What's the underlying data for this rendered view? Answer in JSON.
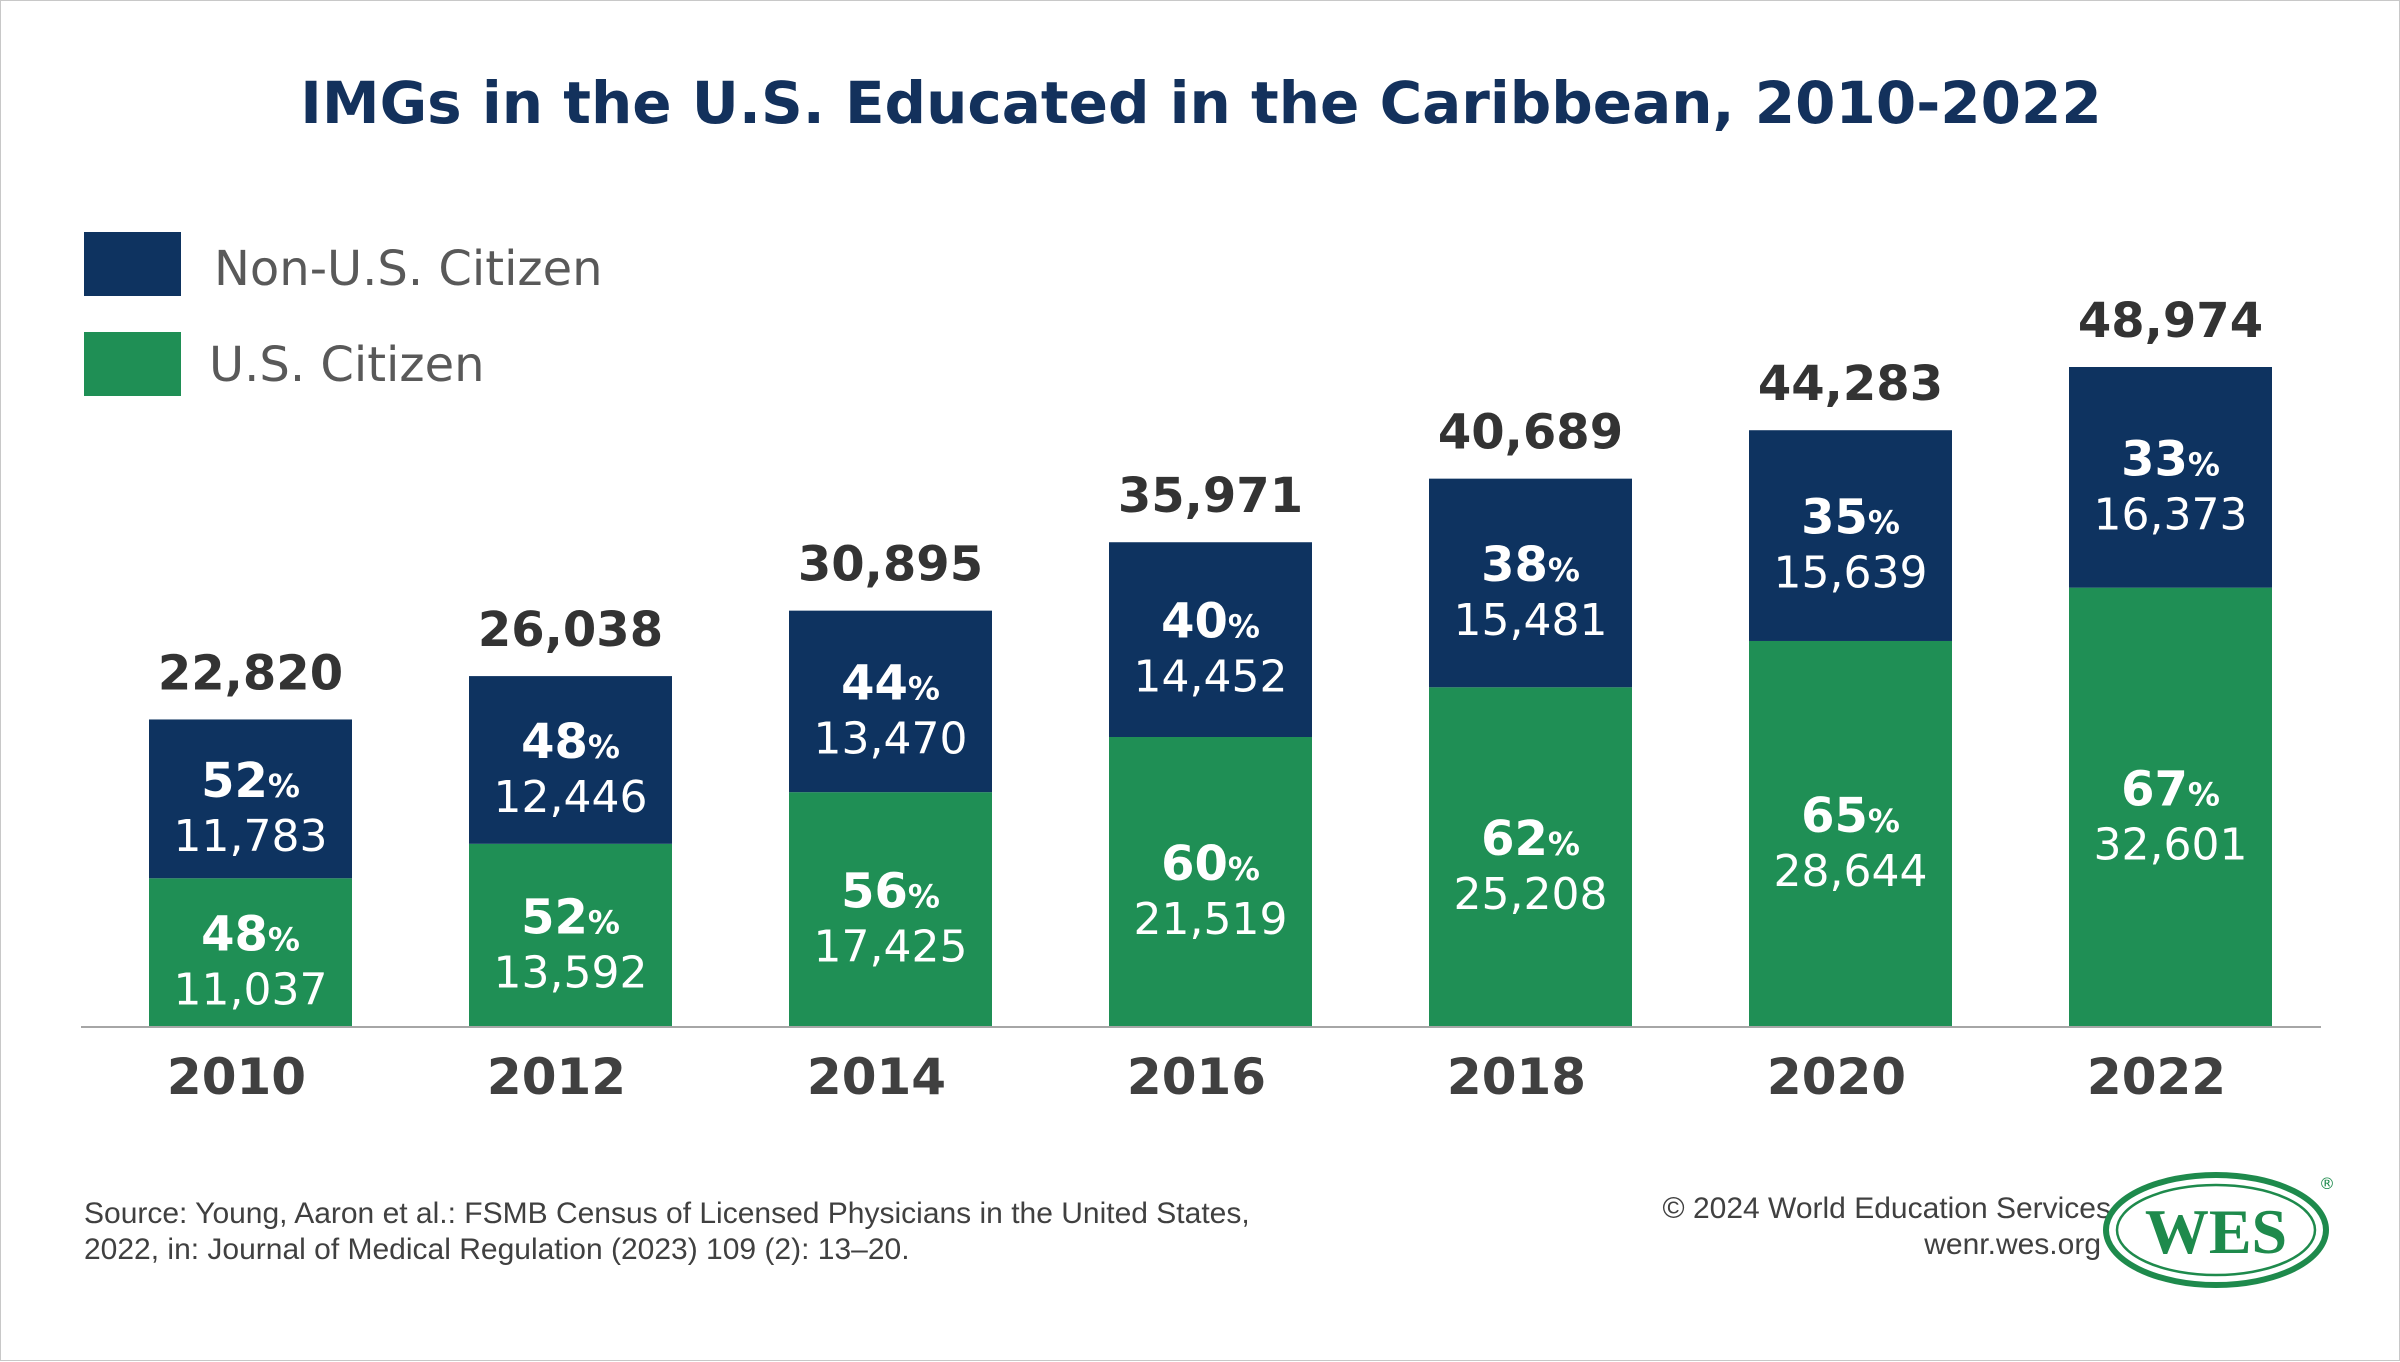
{
  "colors": {
    "non_us": "#0e3360",
    "us": "#1f8f55",
    "title": "#13315c",
    "baseline": "#a6a6a6",
    "logo": "#1e8a4c"
  },
  "title": "IMGs in the U.S. Educated in the Caribbean, 2010-2022",
  "legend": [
    {
      "label": "Non-U.S. Citizen",
      "color": "#0e3360"
    },
    {
      "label": "U.S. Citizen",
      "color": "#1f8f55"
    }
  ],
  "source": {
    "line1": "Source: Young, Aaron et al.: FSMB Census of Licensed Physicians in the United States,",
    "line2": "2022, in: Journal of Medical Regulation (2023) 109 (2): 13–20."
  },
  "credit": {
    "copyright": "© 2024 World Education Services",
    "url": "wenr.wes.org",
    "logo_text": "WES",
    "logo_mark": "®"
  },
  "chart_data": {
    "type": "bar",
    "stacked": true,
    "title": "IMGs in the U.S. Educated in the Caribbean, 2010-2022",
    "xlabel": "",
    "ylabel": "",
    "ylim": [
      0,
      48974
    ],
    "grid": false,
    "legend_position": "top-left",
    "categories": [
      "2010",
      "2012",
      "2014",
      "2016",
      "2018",
      "2020",
      "2022"
    ],
    "totals": [
      "22,820",
      "26,038",
      "30,895",
      "35,971",
      "40,689",
      "44,283",
      "48,974"
    ],
    "series": [
      {
        "name": "U.S. Citizen",
        "color": "#1f8f55",
        "values": [
          11037,
          13592,
          17425,
          21519,
          25208,
          28644,
          32601
        ],
        "value_labels": [
          "11,037",
          "13,592",
          "17,425",
          "21,519",
          "25,208",
          "28,644",
          "32,601"
        ],
        "percents": [
          "48",
          "52",
          "56",
          "60",
          "62",
          "65",
          "67"
        ]
      },
      {
        "name": "Non-U.S. Citizen",
        "color": "#0e3360",
        "values": [
          11783,
          12446,
          13470,
          14452,
          15481,
          15639,
          16373
        ],
        "value_labels": [
          "11,783",
          "12,446",
          "13,470",
          "14,452",
          "15,481",
          "15,639",
          "16,373"
        ],
        "percents": [
          "52",
          "48",
          "44",
          "40",
          "38",
          "35",
          "33"
        ]
      }
    ],
    "percent_sign": "%"
  }
}
